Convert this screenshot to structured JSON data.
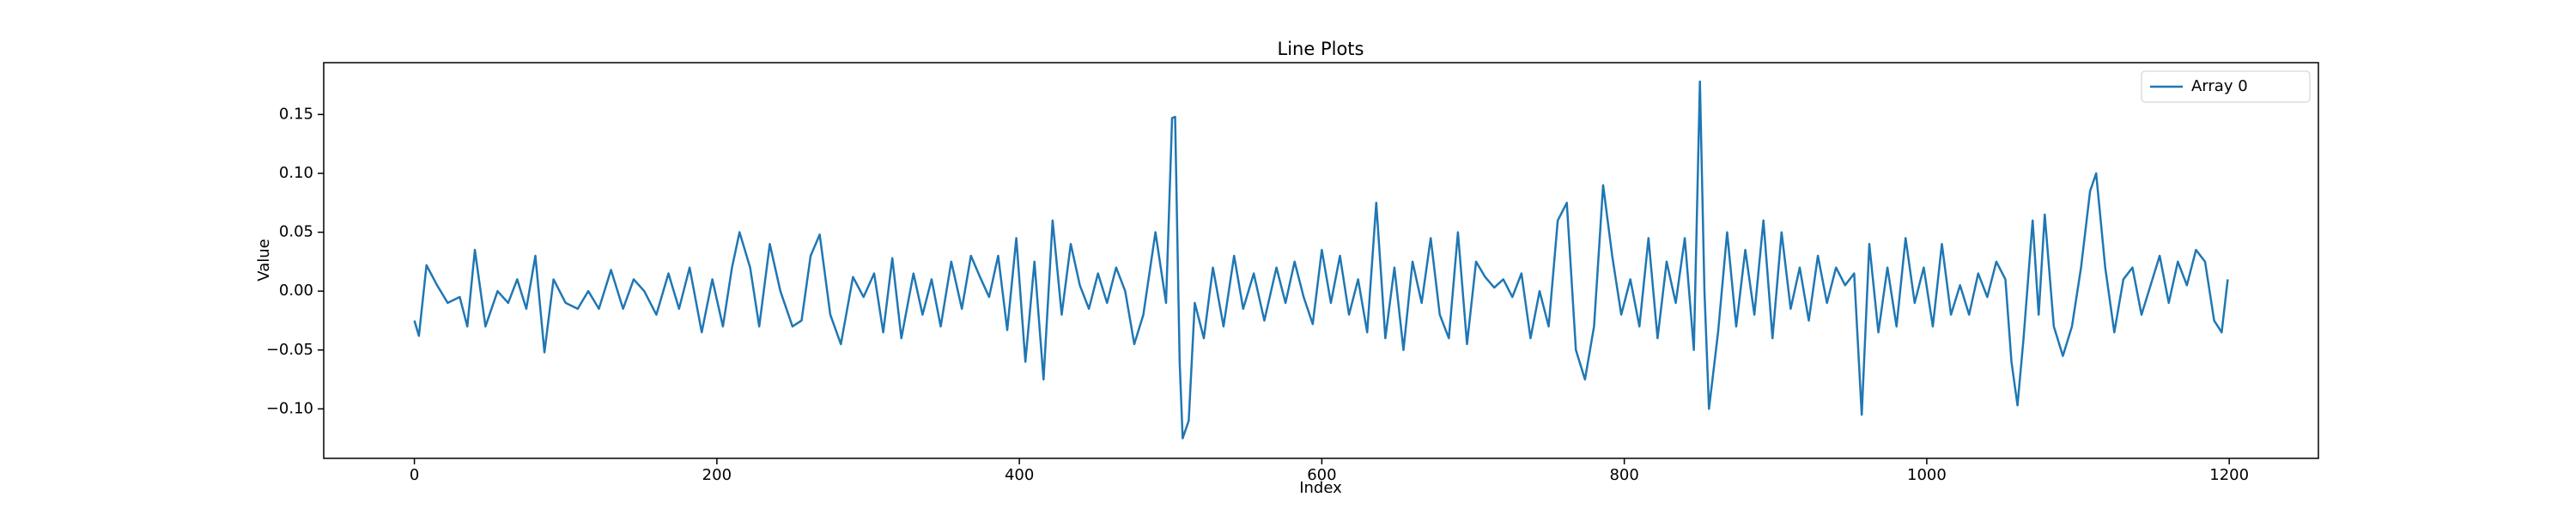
{
  "chart_data": {
    "type": "line",
    "title": "Line Plots",
    "x_label": "Index",
    "y_label": "Value",
    "x": [
      0,
      3,
      8,
      15,
      22,
      30,
      35,
      40,
      47,
      55,
      62,
      68,
      74,
      80,
      86,
      92,
      100,
      108,
      115,
      122,
      130,
      138,
      145,
      152,
      160,
      168,
      175,
      182,
      190,
      197,
      204,
      210,
      215,
      222,
      228,
      235,
      242,
      250,
      256,
      262,
      268,
      275,
      282,
      290,
      297,
      304,
      310,
      316,
      322,
      330,
      336,
      342,
      348,
      355,
      362,
      368,
      374,
      380,
      386,
      392,
      398,
      404,
      410,
      416,
      422,
      428,
      434,
      440,
      446,
      452,
      458,
      464,
      470,
      476,
      482,
      490,
      497,
      501,
      503,
      506,
      508,
      512,
      516,
      522,
      528,
      535,
      542,
      548,
      555,
      562,
      570,
      576,
      582,
      588,
      594,
      600,
      606,
      612,
      618,
      624,
      630,
      636,
      642,
      648,
      654,
      660,
      666,
      672,
      678,
      684,
      690,
      696,
      702,
      708,
      714,
      720,
      726,
      732,
      738,
      744,
      750,
      756,
      762,
      768,
      774,
      780,
      786,
      792,
      798,
      804,
      810,
      816,
      822,
      828,
      834,
      840,
      846,
      850,
      853,
      856,
      862,
      868,
      874,
      880,
      886,
      892,
      898,
      904,
      910,
      916,
      922,
      928,
      934,
      940,
      946,
      952,
      957,
      962,
      968,
      974,
      980,
      986,
      992,
      998,
      1004,
      1010,
      1016,
      1022,
      1028,
      1034,
      1040,
      1046,
      1052,
      1056,
      1060,
      1064,
      1070,
      1074,
      1078,
      1084,
      1090,
      1096,
      1102,
      1108,
      1112,
      1118,
      1124,
      1130,
      1136,
      1142,
      1148,
      1154,
      1160,
      1166,
      1172,
      1178,
      1184,
      1190,
      1195,
      1199
    ],
    "series": [
      {
        "name": "Array 0",
        "color": "#1f77b4",
        "values": [
          -0.025,
          -0.038,
          0.022,
          0.005,
          -0.01,
          -0.005,
          -0.03,
          0.035,
          -0.03,
          0.0,
          -0.01,
          0.01,
          -0.015,
          0.03,
          -0.052,
          0.01,
          -0.01,
          -0.015,
          0.0,
          -0.015,
          0.018,
          -0.015,
          0.01,
          0.0,
          -0.02,
          0.015,
          -0.015,
          0.02,
          -0.035,
          0.01,
          -0.03,
          0.02,
          0.05,
          0.02,
          -0.03,
          0.04,
          0.0,
          -0.03,
          -0.025,
          0.03,
          0.048,
          -0.02,
          -0.045,
          0.012,
          -0.005,
          0.015,
          -0.035,
          0.028,
          -0.04,
          0.015,
          -0.02,
          0.01,
          -0.03,
          0.025,
          -0.015,
          0.03,
          0.012,
          -0.005,
          0.03,
          -0.033,
          0.045,
          -0.06,
          0.025,
          -0.075,
          0.06,
          -0.02,
          0.04,
          0.005,
          -0.015,
          0.015,
          -0.01,
          0.02,
          0.0,
          -0.045,
          -0.02,
          0.05,
          -0.01,
          0.147,
          0.148,
          -0.06,
          -0.125,
          -0.11,
          -0.01,
          -0.04,
          0.02,
          -0.03,
          0.03,
          -0.015,
          0.015,
          -0.025,
          0.02,
          -0.01,
          0.025,
          -0.005,
          -0.028,
          0.035,
          -0.01,
          0.03,
          -0.02,
          0.01,
          -0.035,
          0.075,
          -0.04,
          0.02,
          -0.05,
          0.025,
          -0.01,
          0.045,
          -0.02,
          -0.04,
          0.05,
          -0.045,
          0.025,
          0.012,
          0.003,
          0.01,
          -0.005,
          0.015,
          -0.04,
          0.0,
          -0.03,
          0.06,
          0.075,
          -0.05,
          -0.075,
          -0.03,
          0.09,
          0.03,
          -0.02,
          0.01,
          -0.03,
          0.045,
          -0.04,
          0.025,
          -0.01,
          0.045,
          -0.05,
          0.178,
          0.0,
          -0.1,
          -0.035,
          0.05,
          -0.03,
          0.035,
          -0.02,
          0.06,
          -0.04,
          0.05,
          -0.015,
          0.02,
          -0.025,
          0.03,
          -0.01,
          0.02,
          0.005,
          0.015,
          -0.105,
          0.04,
          -0.035,
          0.02,
          -0.03,
          0.045,
          -0.01,
          0.02,
          -0.03,
          0.04,
          -0.02,
          0.005,
          -0.02,
          0.015,
          -0.005,
          0.025,
          0.01,
          -0.06,
          -0.097,
          -0.04,
          0.06,
          -0.02,
          0.065,
          -0.03,
          -0.055,
          -0.03,
          0.02,
          0.085,
          0.1,
          0.02,
          -0.035,
          0.01,
          0.02,
          -0.02,
          0.005,
          0.03,
          -0.01,
          0.025,
          0.005,
          0.035,
          0.025,
          -0.025,
          -0.035,
          0.01
        ]
      }
    ],
    "xlim": [
      -59.95,
      1258.95
    ],
    "xticks": [
      0,
      200,
      400,
      600,
      800,
      1000,
      1200
    ],
    "ylim": [
      -0.142,
      0.194
    ],
    "yticks": [
      {
        "value": -0.1,
        "label": "−0.10"
      },
      {
        "value": -0.05,
        "label": "−0.05"
      },
      {
        "value": 0,
        "label": "0.00"
      },
      {
        "value": 0.05,
        "label": "0.05"
      },
      {
        "value": 0.1,
        "label": "0.10"
      },
      {
        "value": 0.15,
        "label": "0.15"
      }
    ],
    "grid": false,
    "legend": "upper right"
  }
}
